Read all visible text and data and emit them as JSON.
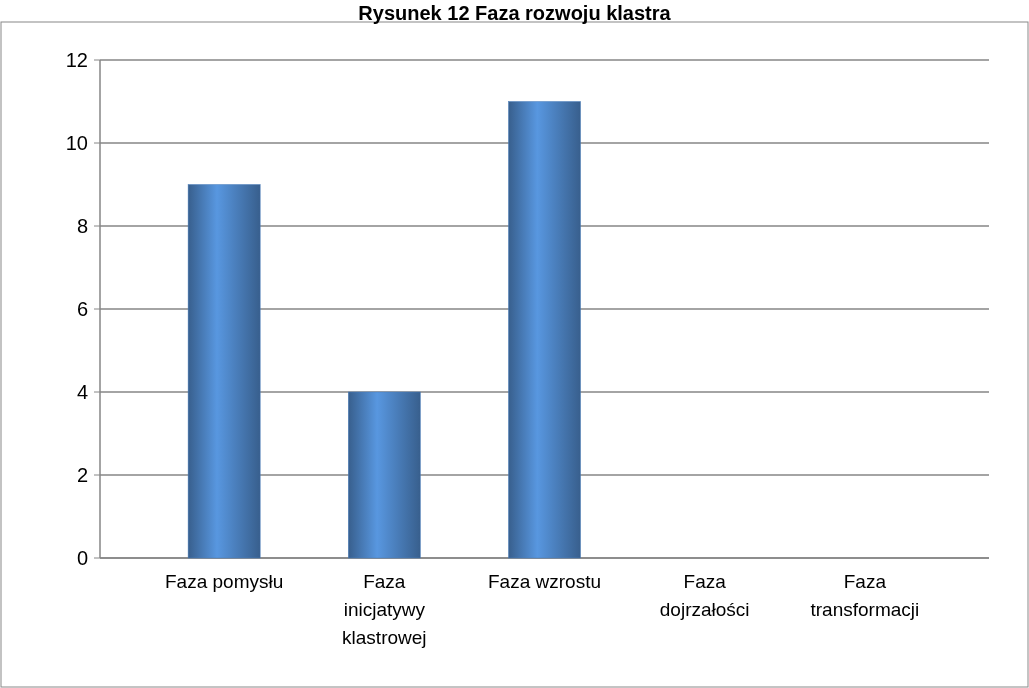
{
  "chart_data": {
    "type": "bar",
    "title": "Rysunek 12 Faza rozwoju klastra",
    "categories": [
      "Faza pomysłu",
      "Faza inicjatywy klastrowej",
      "Faza wzrostu",
      "Faza dojrzałości",
      "Faza transformacji"
    ],
    "values": [
      9,
      4,
      11,
      0,
      0
    ],
    "color": "#4a7ebb",
    "ylim": [
      0,
      12
    ],
    "yticks": [
      0,
      2,
      4,
      6,
      8,
      10,
      12
    ],
    "grid": "y"
  }
}
